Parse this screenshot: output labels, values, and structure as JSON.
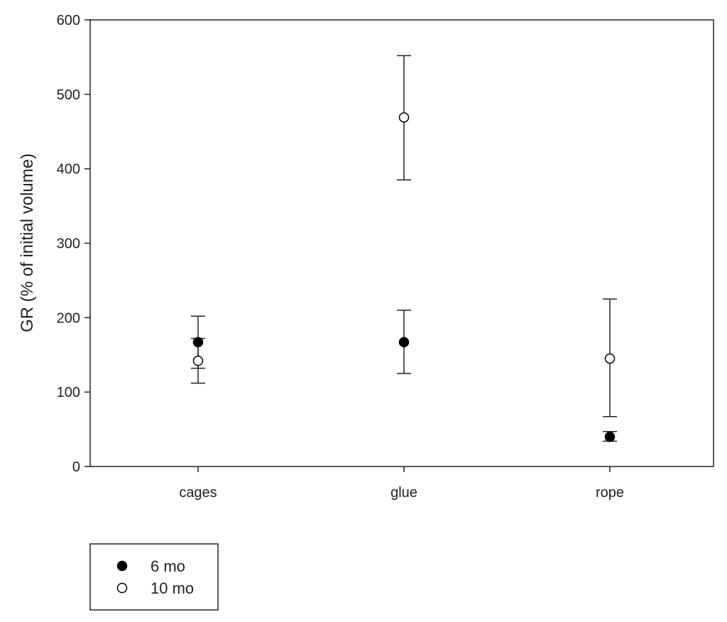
{
  "chart_data": {
    "type": "scatter",
    "title": "",
    "xlabel": "",
    "ylabel": "GR (% of initial volume)",
    "categories": [
      "cages",
      "glue",
      "rope"
    ],
    "ylim": [
      0,
      600
    ],
    "yticks": [
      0,
      100,
      200,
      300,
      400,
      500,
      600
    ],
    "grid": false,
    "legend_position": "bottom-left-outside",
    "series": [
      {
        "name": "6 mo",
        "marker": "filled-circle",
        "color": "#000000",
        "values": [
          167,
          167,
          40
        ],
        "error_lower": [
          132,
          125,
          34
        ],
        "error_upper": [
          172,
          210,
          47
        ]
      },
      {
        "name": "10 mo",
        "marker": "open-circle",
        "color": "#000000",
        "values": [
          142,
          469,
          145
        ],
        "error_lower": [
          112,
          385,
          67
        ],
        "error_upper": [
          202,
          552,
          225
        ]
      }
    ]
  }
}
